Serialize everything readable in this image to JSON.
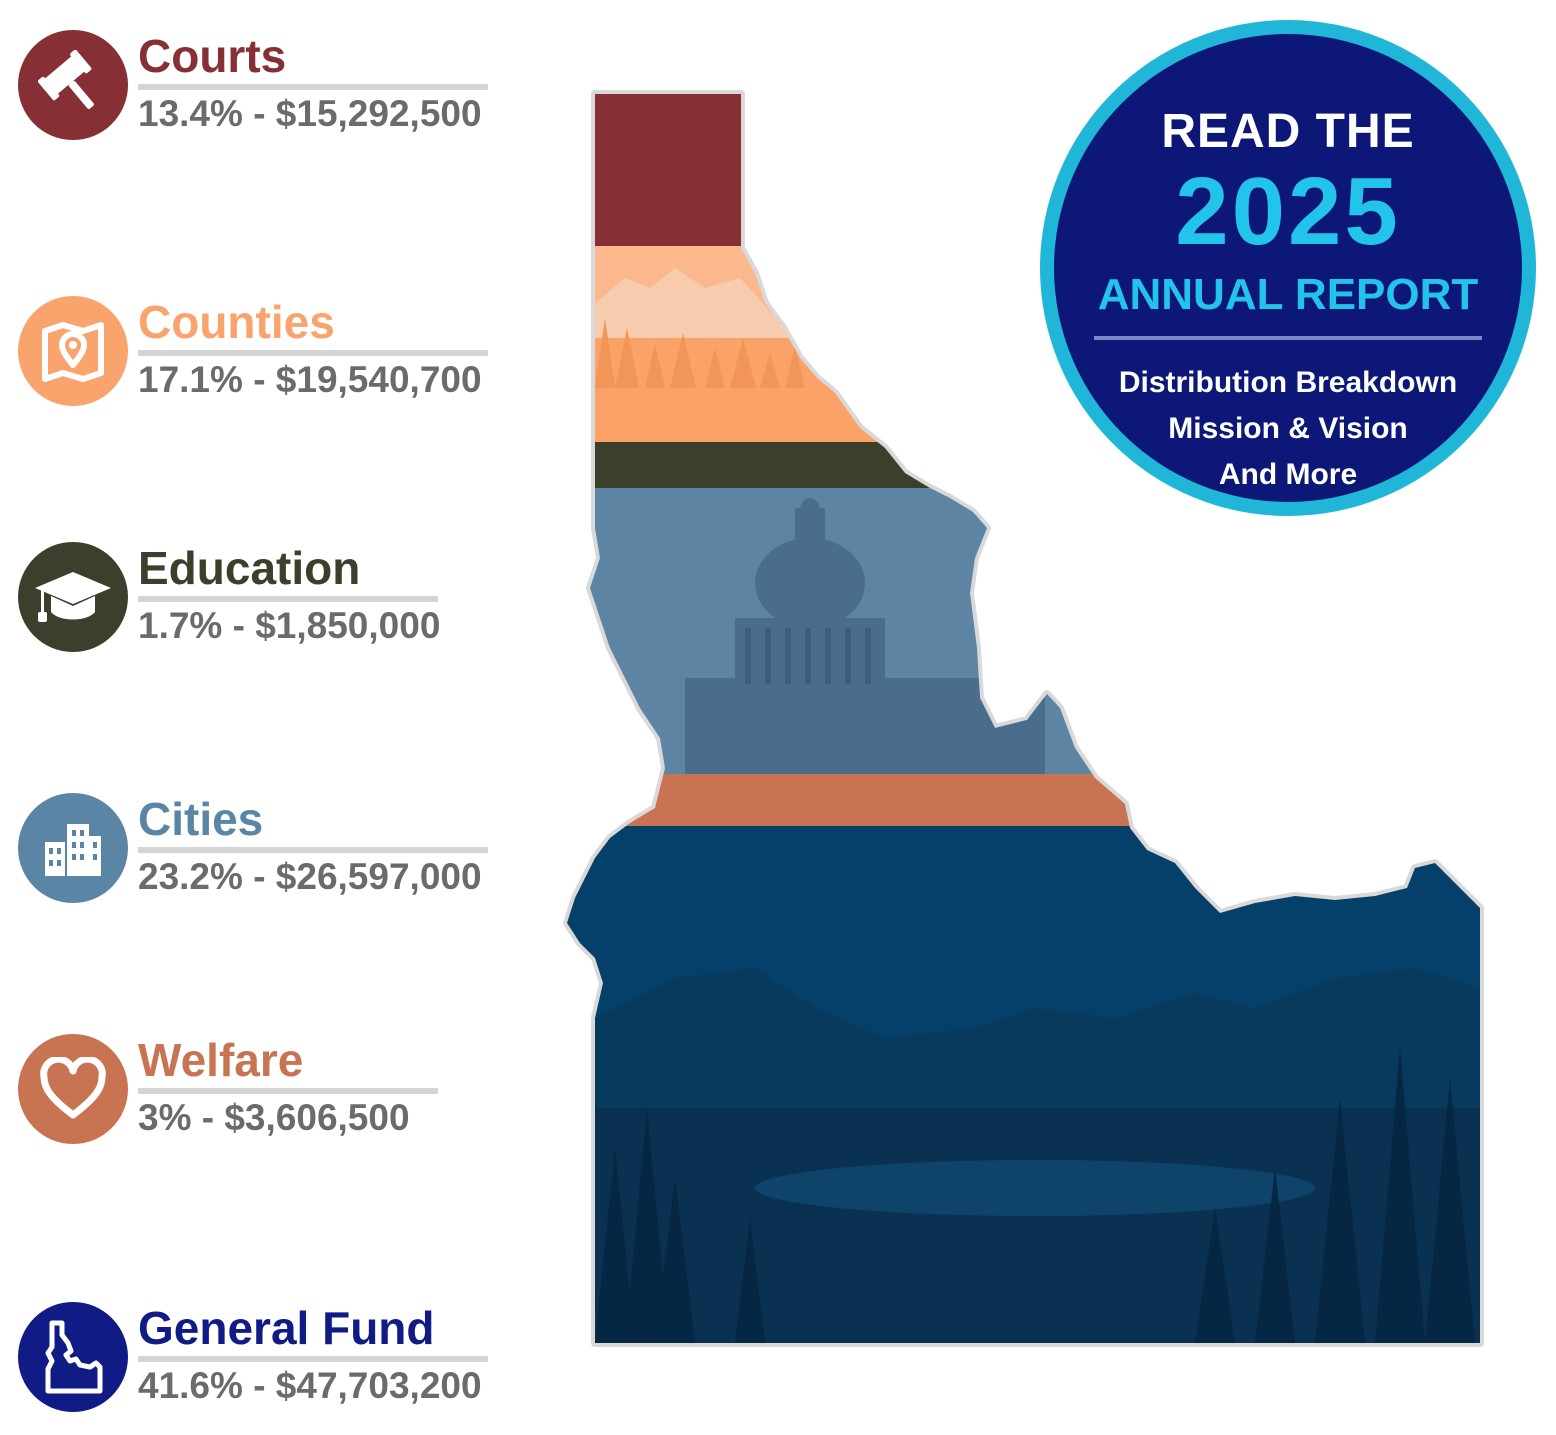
{
  "categories": [
    {
      "name": "Courts",
      "amount": "13.4% - $15,292,500",
      "percent": 13.4,
      "color": "#862f35",
      "icon": "gavel-icon"
    },
    {
      "name": "Counties",
      "amount": "17.1% - $19,540,700",
      "percent": 17.1,
      "color": "#f9a46d",
      "icon": "map-pin-icon"
    },
    {
      "name": "Education",
      "amount": "1.7% - $1,850,000",
      "percent": 1.7,
      "color": "#3b402c",
      "icon": "graduation-cap-icon"
    },
    {
      "name": "Cities",
      "amount": "23.2% - $26,597,000",
      "percent": 23.2,
      "color": "#5b85a4",
      "icon": "buildings-icon"
    },
    {
      "name": "Welfare",
      "amount": "3% - $3,606,500",
      "percent": 3,
      "color": "#c87452",
      "icon": "heart-icon"
    },
    {
      "name": "General Fund",
      "amount": "41.6% - $47,703,200",
      "percent": 41.6,
      "color": "#101b86",
      "icon": "idaho-state-icon"
    }
  ],
  "badge": {
    "line1": "READ THE",
    "year": "2025",
    "line3": "ANNUAL REPORT",
    "items": [
      "Distribution Breakdown",
      "Mission & Vision",
      "And More"
    ],
    "ring_color": "#1fb6d8",
    "fill_color": "#0c1778",
    "accent_color": "#23c4ea"
  }
}
